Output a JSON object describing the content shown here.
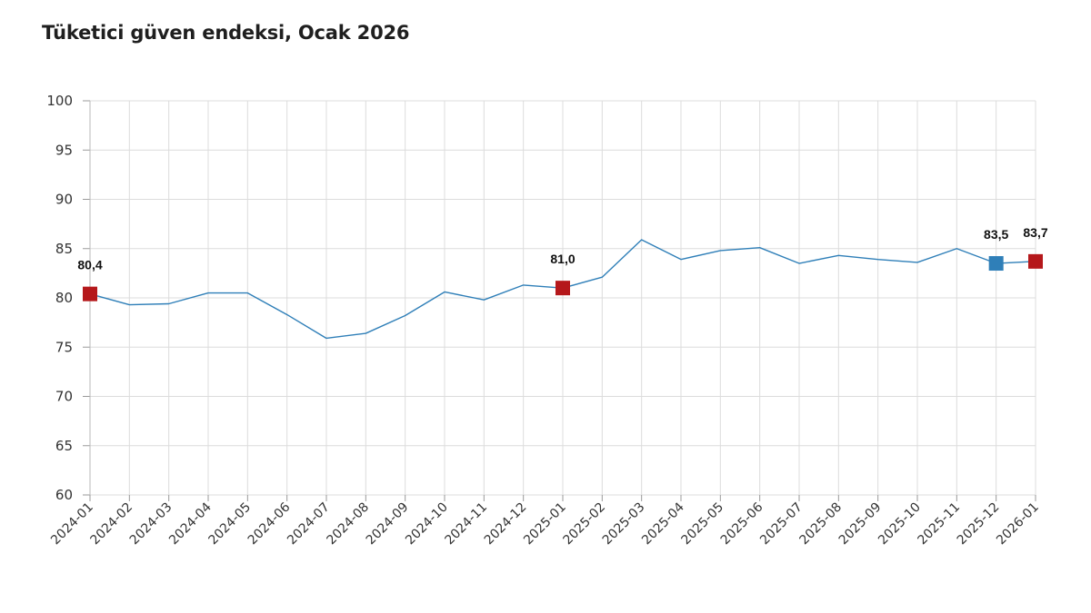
{
  "chart_data": {
    "type": "line",
    "title": "Tüketici güven endeksi, Ocak 2026",
    "xlabel": "",
    "ylabel": "",
    "ylim": [
      60,
      100
    ],
    "yticks": [
      60,
      65,
      70,
      75,
      80,
      85,
      90,
      95,
      100
    ],
    "grid": true,
    "legend": "none",
    "categories": [
      "2024-01",
      "2024-02",
      "2024-03",
      "2024-04",
      "2024-05",
      "2024-06",
      "2024-07",
      "2024-08",
      "2024-09",
      "2024-10",
      "2024-11",
      "2024-12",
      "2025-01",
      "2025-02",
      "2025-03",
      "2025-04",
      "2025-05",
      "2025-06",
      "2025-07",
      "2025-08",
      "2025-09",
      "2025-10",
      "2025-11",
      "2025-12",
      "2026-01"
    ],
    "series": [
      {
        "values": [
          80.4,
          79.3,
          79.4,
          80.5,
          80.5,
          78.3,
          75.9,
          76.4,
          78.2,
          80.6,
          79.8,
          81.3,
          81.0,
          82.1,
          85.9,
          83.9,
          84.8,
          85.1,
          83.5,
          84.3,
          83.9,
          83.6,
          85.0,
          83.5,
          83.7
        ],
        "color": "#2f7fb8"
      }
    ],
    "highlights": [
      {
        "category": "2024-01",
        "value": 80.4,
        "label": "80,4",
        "color": "#b5181b"
      },
      {
        "category": "2025-01",
        "value": 81.0,
        "label": "81,0",
        "color": "#b5181b"
      },
      {
        "category": "2025-12",
        "value": 83.5,
        "label": "83,5",
        "color": "#2f7fb8"
      },
      {
        "category": "2026-01",
        "value": 83.7,
        "label": "83,7",
        "color": "#b5181b"
      }
    ]
  }
}
